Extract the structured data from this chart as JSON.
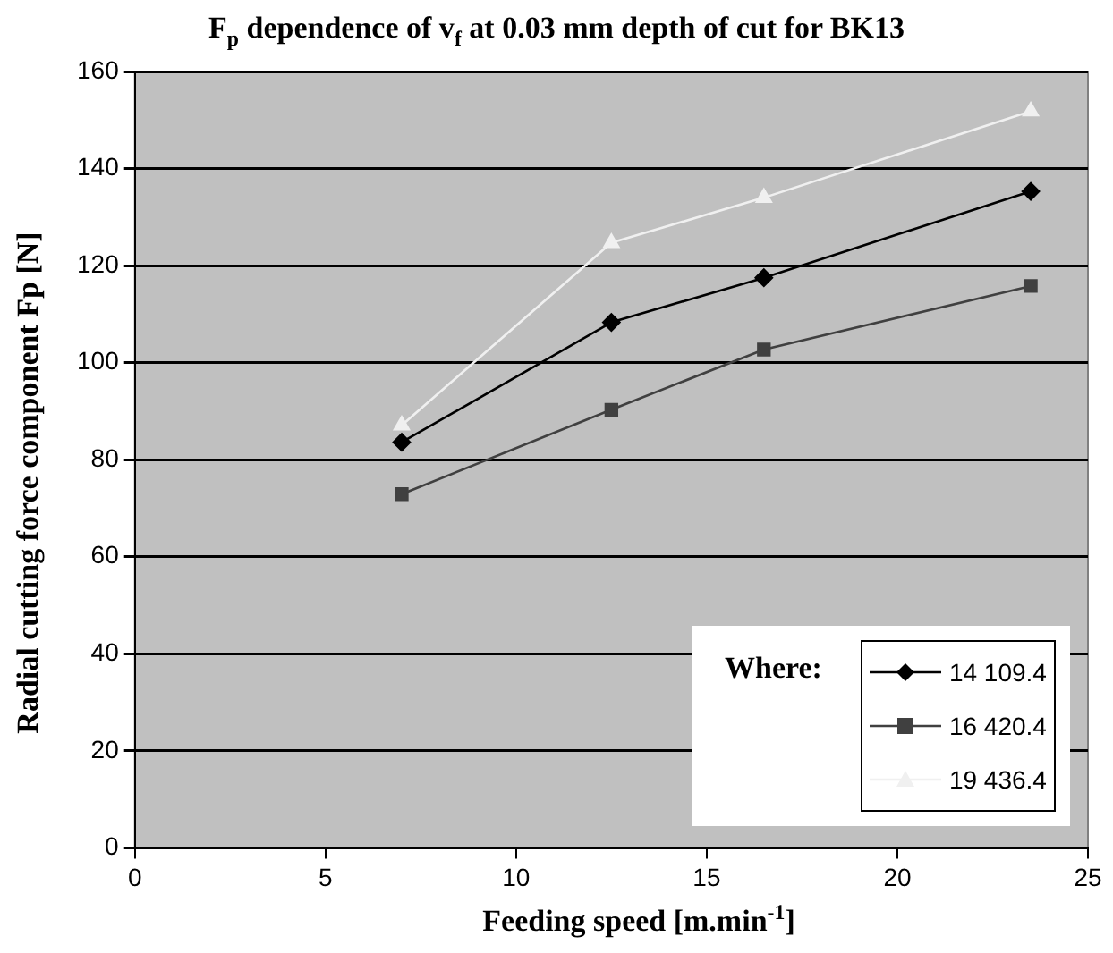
{
  "chart_data": {
    "type": "line",
    "title": "F$_{p}$ dependence of v$_{f}$ at 0.03 mm depth of cut for BK13",
    "xlabel": "Feeding speed [m.min$^{-1}$]",
    "ylabel": "Radial cutting force component Fp [N]",
    "legend_title": "Where:",
    "x": [
      7,
      12.5,
      16.5,
      23.5
    ],
    "series": [
      {
        "name": "14 109.4",
        "color": "#000000",
        "marker": "diamond",
        "values": [
          83.6,
          108.3,
          117.5,
          135.3
        ]
      },
      {
        "name": "16 420.4",
        "color": "#404040",
        "marker": "square",
        "values": [
          72.9,
          90.3,
          102.7,
          115.8
        ]
      },
      {
        "name": "19 436.4",
        "color": "#f0f0f0",
        "marker": "triangle",
        "values": [
          87.1,
          124.7,
          134,
          151.8
        ]
      }
    ],
    "xlim": [
      0,
      25
    ],
    "xticks": [
      0,
      5,
      10,
      15,
      20,
      25
    ],
    "ylim": [
      0,
      160
    ],
    "yticks": [
      0,
      20,
      40,
      60,
      80,
      100,
      120,
      140,
      160
    ],
    "grid": "y",
    "legend": "bottom right"
  }
}
